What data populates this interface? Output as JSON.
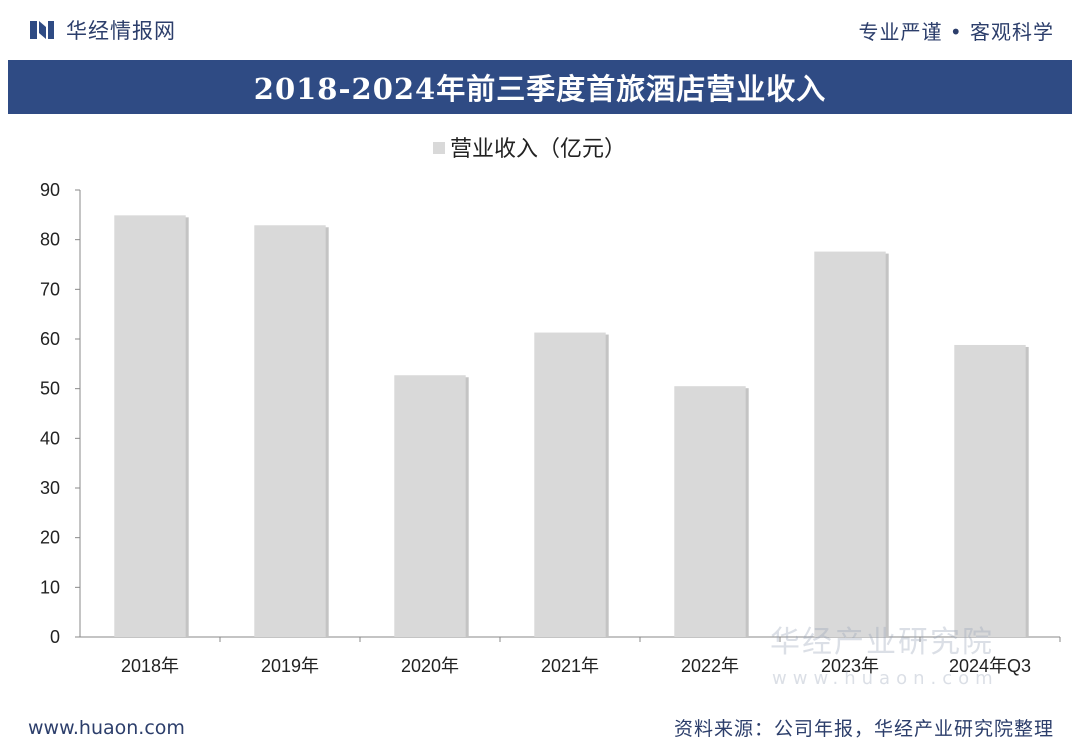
{
  "header": {
    "brand_name": "华经情报网",
    "slogan": "专业严谨 • 客观科学"
  },
  "chart_data": {
    "type": "bar",
    "title": "2018-2024年前三季度首旅酒店营业收入",
    "categories": [
      "2018年",
      "2019年",
      "2020年",
      "2021年",
      "2022年",
      "2023年",
      "2024年Q3"
    ],
    "series": [
      {
        "name": "营业收入（亿元）",
        "values": [
          84.9,
          82.9,
          52.7,
          61.3,
          50.5,
          77.6,
          58.8
        ],
        "color": "#d9d9d9"
      }
    ],
    "ylim": [
      0,
      90
    ],
    "yticks": [
      0,
      10,
      20,
      30,
      40,
      50,
      60,
      70,
      80,
      90
    ],
    "legend_position": "top-center",
    "grid": false
  },
  "watermark": {
    "cn": "华经产业研究院",
    "url": "www.huaon.com"
  },
  "footer": {
    "url": "www.huaon.com",
    "source": "资料来源：公司年报，华经产业研究院整理"
  },
  "colors": {
    "brand": "#2f4b84",
    "bar": "#d9d9d9"
  }
}
